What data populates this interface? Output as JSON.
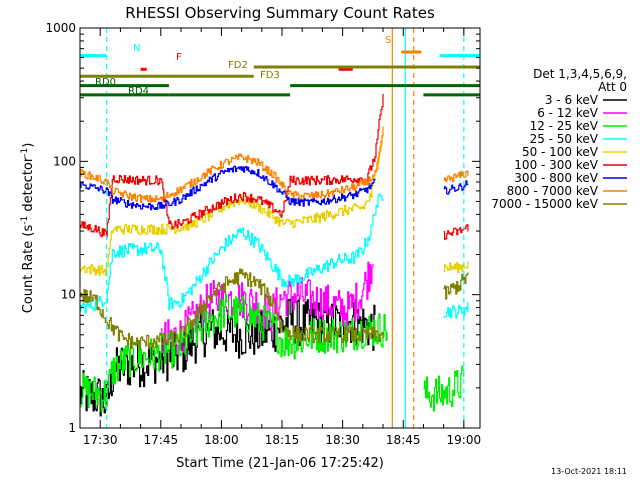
{
  "chart_data": {
    "type": "line",
    "title": "RHESSI Observing Summary Count Rates",
    "xlabel": "Start Time (21-Jan-06 17:25:42)",
    "ylabel_main": "Count Rate (s",
    "ylabel_sup1": "-1",
    "ylabel_mid": " detector",
    "ylabel_sup2": "-1",
    "ylabel_end": ")",
    "y_scale": "log",
    "ylim": [
      1,
      1000
    ],
    "xlim_minutes": [
      0,
      99
    ],
    "x_tick_minutes": [
      5,
      20,
      35,
      50,
      65,
      80,
      95
    ],
    "x_tick_labels": [
      "17:30",
      "17:45",
      "18:00",
      "18:15",
      "18:30",
      "18:45",
      "19:00"
    ],
    "y_tick_labels": [
      {
        "value": 1,
        "label": "1"
      },
      {
        "value": 10,
        "label": "10"
      },
      {
        "value": 100,
        "label": "100"
      },
      {
        "value": 1000,
        "label": "1000"
      }
    ],
    "footer_date": "13-Oct-2021 18:11",
    "legend": {
      "header_line1": "Det 1,3,4,5,6,9,",
      "header_line2": "Att 0",
      "entries": [
        {
          "label": "3 - 6 keV",
          "color": "#000000"
        },
        {
          "label": "6 - 12 keV",
          "color": "#ff00ff"
        },
        {
          "label": "12 - 25 keV",
          "color": "#00ee00"
        },
        {
          "label": "25 - 50 keV",
          "color": "#00ffff"
        },
        {
          "label": "50 - 100 keV",
          "color": "#e8d000"
        },
        {
          "label": "100 - 300 keV",
          "color": "#ee0000"
        },
        {
          "label": "300 - 800 keV",
          "color": "#0000ee"
        },
        {
          "label": "800 - 7000 keV",
          "color": "#ff8000"
        },
        {
          "label": "7000 - 15000 keV",
          "color": "#808000"
        }
      ]
    },
    "series": [
      {
        "name": "3 - 6 keV",
        "color": "#000000",
        "noise": 0.18,
        "points": [
          [
            0,
            1.8
          ],
          [
            5,
            1.7
          ],
          [
            6.5,
            1.5
          ],
          [
            8,
            2.5
          ],
          [
            10,
            2.9
          ],
          [
            14,
            3.0
          ],
          [
            18,
            3.2
          ],
          [
            22,
            3.4
          ],
          [
            25,
            3.6
          ],
          [
            28,
            4.5
          ],
          [
            32,
            5.5
          ],
          [
            36,
            5.2
          ],
          [
            40,
            5.0
          ],
          [
            44,
            5.0
          ],
          [
            48,
            5.5
          ],
          [
            52,
            6.5
          ],
          [
            55,
            6.0
          ],
          [
            58,
            6.2
          ],
          [
            62,
            6.0
          ],
          [
            66,
            6.4
          ],
          [
            70,
            6.0
          ],
          [
            73,
            5.5
          ]
        ]
      },
      {
        "name": "6 - 12 keV",
        "color": "#ff00ff",
        "noise": 0.15,
        "points": [
          [
            20,
            4.5
          ],
          [
            25,
            5.0
          ],
          [
            28,
            6.5
          ],
          [
            32,
            9.0
          ],
          [
            36,
            9.5
          ],
          [
            40,
            9.2
          ],
          [
            44,
            8.5
          ],
          [
            47,
            7.0
          ],
          [
            50,
            9.5
          ],
          [
            54,
            10.0
          ],
          [
            58,
            9.0
          ],
          [
            62,
            8.5
          ],
          [
            66,
            7.5
          ],
          [
            69,
            9.5
          ],
          [
            71,
            13.0
          ],
          [
            72.5,
            19.0
          ]
        ]
      },
      {
        "name": "12 - 25 keV",
        "color": "#00ee00",
        "noise": 0.14,
        "points": [
          [
            0,
            1.9
          ],
          [
            6.5,
            1.8
          ],
          [
            8,
            2.7
          ],
          [
            12,
            3.3
          ],
          [
            16,
            3.4
          ],
          [
            20,
            3.7
          ],
          [
            25,
            4.0
          ],
          [
            28,
            5.0
          ],
          [
            32,
            6.5
          ],
          [
            36,
            7.5
          ],
          [
            40,
            7.2
          ],
          [
            44,
            6.5
          ],
          [
            48,
            5.5
          ],
          [
            50,
            4.5
          ],
          [
            54,
            4.5
          ],
          [
            58,
            5.0
          ],
          [
            62,
            5.0
          ],
          [
            66,
            5.0
          ],
          [
            70,
            5.5
          ],
          [
            73,
            5.5
          ],
          [
            76,
            5.5
          ],
          [
            85,
            1.8
          ],
          [
            90,
            1.8
          ],
          [
            95,
            2.2
          ]
        ]
      },
      {
        "name": "25 - 50 keV",
        "color": "#00ffff",
        "noise": 0.05,
        "points": [
          [
            0,
            8.0
          ],
          [
            4,
            8.5
          ],
          [
            6.5,
            9.5
          ],
          [
            8,
            21
          ],
          [
            12,
            21.5
          ],
          [
            16,
            22
          ],
          [
            20,
            22
          ],
          [
            22,
            8.5
          ],
          [
            25,
            9.0
          ],
          [
            28,
            11.5
          ],
          [
            32,
            17
          ],
          [
            36,
            24
          ],
          [
            40,
            30
          ],
          [
            44,
            24
          ],
          [
            48,
            16
          ],
          [
            50,
            13
          ],
          [
            52,
            12.5
          ],
          [
            56,
            14
          ],
          [
            60,
            16
          ],
          [
            64,
            18
          ],
          [
            68,
            19
          ],
          [
            70,
            22
          ],
          [
            72,
            30
          ],
          [
            73,
            45
          ],
          [
            75,
            58
          ],
          [
            90,
            7.5
          ],
          [
            94,
            7.5
          ],
          [
            96,
            8.0
          ]
        ]
      },
      {
        "name": "50 - 100 keV",
        "color": "#e8d000",
        "noise": 0.04,
        "points": [
          [
            0,
            16
          ],
          [
            6.5,
            15
          ],
          [
            8,
            31
          ],
          [
            12,
            31
          ],
          [
            16,
            31
          ],
          [
            20,
            31
          ],
          [
            22,
            31
          ],
          [
            25,
            32
          ],
          [
            28,
            34
          ],
          [
            32,
            39
          ],
          [
            36,
            47
          ],
          [
            40,
            52
          ],
          [
            44,
            46
          ],
          [
            48,
            38
          ],
          [
            50,
            34
          ],
          [
            54,
            35
          ],
          [
            58,
            37
          ],
          [
            62,
            40
          ],
          [
            66,
            43
          ],
          [
            70,
            45
          ],
          [
            72,
            55
          ],
          [
            73,
            80
          ],
          [
            74,
            115
          ],
          [
            75,
            160
          ],
          [
            90,
            16
          ],
          [
            94,
            16
          ],
          [
            96,
            17
          ]
        ]
      },
      {
        "name": "100 - 300 keV",
        "color": "#ee0000",
        "noise": 0.035,
        "points": [
          [
            0,
            33
          ],
          [
            4,
            31
          ],
          [
            6.5,
            28
          ],
          [
            8,
            75
          ],
          [
            12,
            73
          ],
          [
            16,
            72
          ],
          [
            20,
            72
          ],
          [
            22,
            33
          ],
          [
            25,
            34
          ],
          [
            28,
            38
          ],
          [
            32,
            44
          ],
          [
            36,
            50
          ],
          [
            40,
            55
          ],
          [
            44,
            52
          ],
          [
            48,
            44
          ],
          [
            50,
            40
          ],
          [
            52,
            72
          ],
          [
            56,
            72
          ],
          [
            60,
            72
          ],
          [
            64,
            73
          ],
          [
            68,
            74
          ],
          [
            71,
            74
          ],
          [
            73,
            110
          ],
          [
            74,
            190
          ],
          [
            75,
            300
          ],
          [
            90,
            28
          ],
          [
            94,
            30
          ],
          [
            96,
            32
          ]
        ]
      },
      {
        "name": "300 - 800 keV",
        "color": "#0000ee",
        "noise": 0.03,
        "points": [
          [
            0,
            67
          ],
          [
            4,
            63
          ],
          [
            6.5,
            60
          ],
          [
            8,
            52
          ],
          [
            12,
            48
          ],
          [
            16,
            46
          ],
          [
            20,
            46
          ],
          [
            22,
            48
          ],
          [
            25,
            52
          ],
          [
            28,
            60
          ],
          [
            32,
            72
          ],
          [
            36,
            84
          ],
          [
            40,
            90
          ],
          [
            44,
            82
          ],
          [
            48,
            66
          ],
          [
            50,
            58
          ],
          [
            52,
            50
          ],
          [
            56,
            49
          ],
          [
            60,
            50
          ],
          [
            64,
            53
          ],
          [
            68,
            56
          ],
          [
            71,
            62
          ],
          [
            73,
            70
          ],
          [
            90,
            60
          ],
          [
            94,
            64
          ],
          [
            96,
            68
          ]
        ]
      },
      {
        "name": "800 - 7000 keV",
        "color": "#ff8000",
        "noise": 0.03,
        "points": [
          [
            0,
            82
          ],
          [
            4,
            75
          ],
          [
            6.5,
            70
          ],
          [
            8,
            60
          ],
          [
            12,
            55
          ],
          [
            16,
            52
          ],
          [
            20,
            52
          ],
          [
            22,
            56
          ],
          [
            25,
            62
          ],
          [
            28,
            70
          ],
          [
            32,
            84
          ],
          [
            36,
            98
          ],
          [
            40,
            108
          ],
          [
            44,
            98
          ],
          [
            48,
            78
          ],
          [
            50,
            66
          ],
          [
            52,
            56
          ],
          [
            56,
            55
          ],
          [
            60,
            56
          ],
          [
            64,
            60
          ],
          [
            68,
            64
          ],
          [
            71,
            70
          ],
          [
            73,
            80
          ],
          [
            74,
            110
          ],
          [
            75,
            170
          ],
          [
            90,
            72
          ],
          [
            94,
            78
          ],
          [
            96,
            82
          ]
        ]
      },
      {
        "name": "7000 - 15000 keV",
        "color": "#808000",
        "noise": 0.06,
        "points": [
          [
            0,
            10
          ],
          [
            4,
            9.0
          ],
          [
            6.5,
            6.5
          ],
          [
            10,
            4.8
          ],
          [
            14,
            4.3
          ],
          [
            18,
            4.5
          ],
          [
            22,
            4.5
          ],
          [
            25,
            5.0
          ],
          [
            28,
            6.5
          ],
          [
            32,
            9.5
          ],
          [
            36,
            12
          ],
          [
            40,
            14
          ],
          [
            44,
            12
          ],
          [
            48,
            8.5
          ],
          [
            50,
            5.5
          ],
          [
            54,
            5.0
          ],
          [
            58,
            5.0
          ],
          [
            62,
            5.0
          ],
          [
            66,
            5.0
          ],
          [
            70,
            5.0
          ],
          [
            73,
            5.0
          ],
          [
            75,
            5.0
          ],
          [
            90,
            10
          ],
          [
            94,
            12
          ],
          [
            96,
            14
          ]
        ]
      }
    ],
    "orbit_flags": [
      {
        "label": "N",
        "color": "#00ffff",
        "y": 620,
        "segments": [
          [
            0,
            6.5
          ],
          [
            89,
            99
          ]
        ]
      },
      {
        "label": "S",
        "color": "#ff8000",
        "y": 660,
        "segments": [
          [
            79.5,
            84.5
          ]
        ]
      },
      {
        "label": "F",
        "color": "#ff0000",
        "y": 490,
        "segments": [
          [
            15,
            16.5
          ],
          [
            64,
            67.5
          ]
        ]
      },
      {
        "label": "FD2",
        "color": "#808000",
        "y": 510,
        "segments": [
          [
            43,
            99
          ]
        ]
      },
      {
        "label": "FD3",
        "color": "#808000",
        "y": 435,
        "segments": [
          [
            0,
            43
          ]
        ]
      },
      {
        "label": "RD0",
        "color": "#006400",
        "y": 370,
        "segments": [
          [
            0,
            22
          ],
          [
            52,
            99
          ]
        ]
      },
      {
        "label": "RD4",
        "color": "#006400",
        "y": 315,
        "segments": [
          [
            0,
            22
          ],
          [
            22,
            52
          ],
          [
            85,
            99
          ]
        ]
      }
    ],
    "vertical_markers": [
      {
        "x": 6.6,
        "color": "#00ffff",
        "style": "dashed"
      },
      {
        "x": 77.3,
        "color": "#ff8000",
        "style": "solid"
      },
      {
        "x": 80.5,
        "color": "#00ffff",
        "style": "solid"
      },
      {
        "x": 82.6,
        "color": "#ff8000",
        "style": "dashed"
      },
      {
        "x": 95.0,
        "color": "#00ffff",
        "style": "dashed"
      }
    ]
  }
}
